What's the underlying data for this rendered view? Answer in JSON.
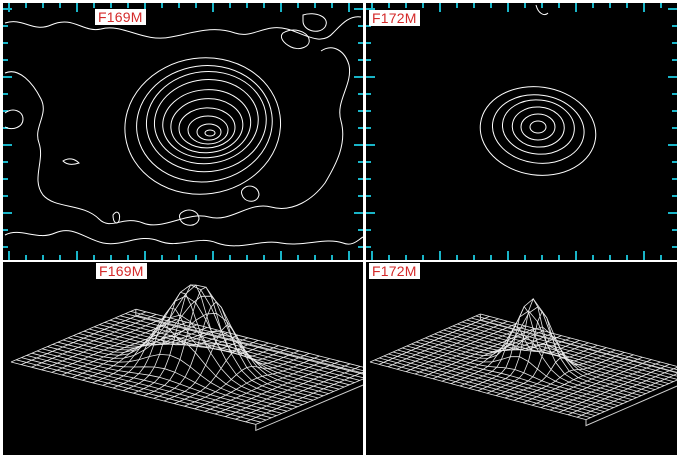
{
  "panels": {
    "contour_left": {
      "label": "F169M"
    },
    "contour_right": {
      "label": "F172M"
    },
    "surface_left": {
      "label": "F169M"
    },
    "surface_right": {
      "label": "F172M"
    }
  },
  "colors": {
    "background": "#000000",
    "contour_line": "#ffffff",
    "axis_ticks": "#19b5c8",
    "label_text": "#d42a2a",
    "label_background": "#ffffff"
  }
}
